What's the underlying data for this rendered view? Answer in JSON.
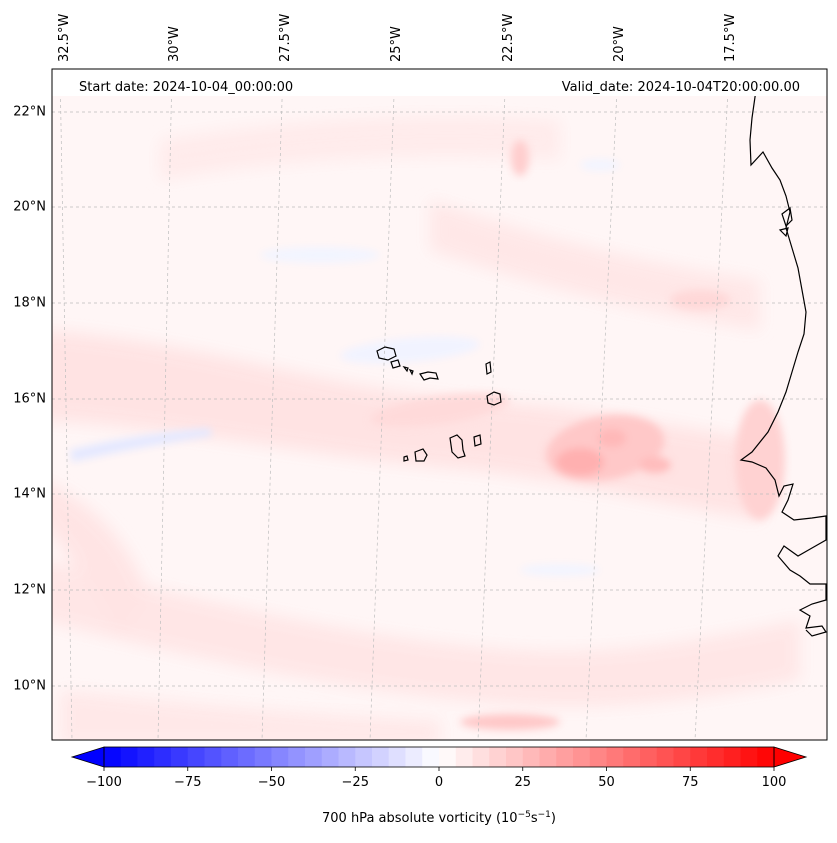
{
  "map": {
    "start_label": "Start date: 2024-10-04_00:00:00",
    "valid_label": "Valid_date: 2024-10-04T20:00:00.00",
    "lon_labels": [
      "32.5°W",
      "30°W",
      "27.5°W",
      "25°W",
      "22.5°W",
      "20°W",
      "17.5°W"
    ],
    "lat_labels": [
      "22°N",
      "20°N",
      "18°N",
      "16°N",
      "14°N",
      "12°N",
      "10°N"
    ],
    "islands": [
      "Santo Antão",
      "São Vicente",
      "Santa Luzia",
      "São Nicolau",
      "Sal",
      "Boa Vista",
      "Maio",
      "Santiago",
      "Fogo",
      "Brava"
    ],
    "coast": "West Africa"
  },
  "colorbar": {
    "ticks": [
      "−100",
      "−75",
      "−50",
      "−25",
      "0",
      "25",
      "50",
      "75",
      "100"
    ],
    "tick_values": [
      -100,
      -75,
      -50,
      -25,
      0,
      25,
      50,
      75,
      100
    ],
    "min": -100,
    "max": 100,
    "levels": 41,
    "label": "700 hPa absolute vorticity (10",
    "label_exp1": "−5",
    "label_mid": "s",
    "label_exp2": "−1",
    "label_end": ")",
    "color_neg": "#0000ff",
    "color_mid": "#ffffff",
    "color_pos": "#ff0000"
  }
}
